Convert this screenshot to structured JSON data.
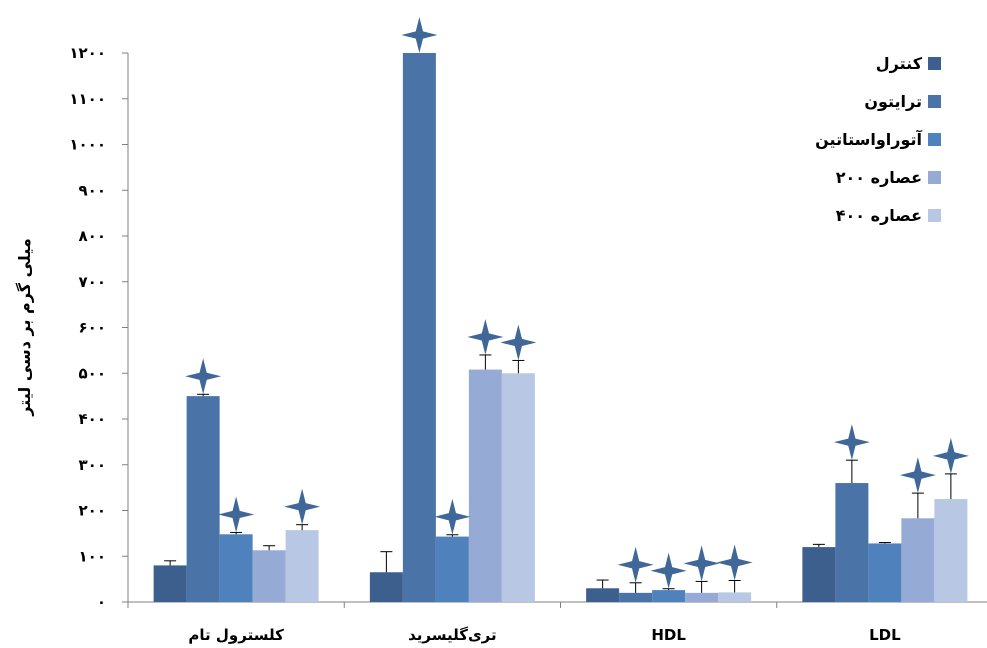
{
  "chart_data": {
    "type": "bar",
    "title": "",
    "ylabel": "میلی گرم بر دسی لیتر",
    "xlabel": "",
    "ylim": [
      0,
      1200
    ],
    "yticks": [
      0,
      100,
      200,
      300,
      400,
      500,
      600,
      700,
      800,
      900,
      1000,
      1100,
      1200
    ],
    "ytick_labels": [
      "۰",
      "۱۰۰",
      "۲۰۰",
      "۳۰۰",
      "۴۰۰",
      "۵۰۰",
      "۶۰۰",
      "۷۰۰",
      "۸۰۰",
      "۹۰۰",
      "۱۰۰۰",
      "۱۱۰۰",
      "۱۲۰۰"
    ],
    "categories": [
      "کلسترول تام",
      "تری‌گلیسرید",
      "HDL",
      "LDL"
    ],
    "legend_position": "top-right",
    "grid": false,
    "series": [
      {
        "name": "کنترل",
        "color": "#3c5f8e",
        "values": [
          80,
          65,
          30,
          120
        ],
        "errors": [
          10,
          45,
          18,
          6
        ],
        "significant": [
          false,
          false,
          false,
          false
        ]
      },
      {
        "name": "ترایتون",
        "color": "#4a74a8",
        "values": [
          450,
          1200,
          20,
          260
        ],
        "errors": [
          4,
          0,
          22,
          50
        ],
        "significant": [
          true,
          true,
          true,
          true
        ]
      },
      {
        "name": "آتوراواستاتین",
        "color": "#4f81bd",
        "values": [
          148,
          143,
          26,
          128
        ],
        "errors": [
          4,
          4,
          3,
          2
        ],
        "significant": [
          true,
          true,
          true,
          false
        ]
      },
      {
        "name": "عصاره ۲۰۰",
        "color": "#95abd5",
        "values": [
          113,
          508,
          20,
          183
        ],
        "errors": [
          10,
          32,
          25,
          55
        ],
        "significant": [
          false,
          true,
          true,
          true
        ]
      },
      {
        "name": "عصاره ۴۰۰",
        "color": "#b8c7e3",
        "values": [
          157,
          500,
          21,
          225
        ],
        "errors": [
          12,
          28,
          26,
          55
        ],
        "significant": [
          true,
          true,
          true,
          true
        ]
      }
    ]
  }
}
